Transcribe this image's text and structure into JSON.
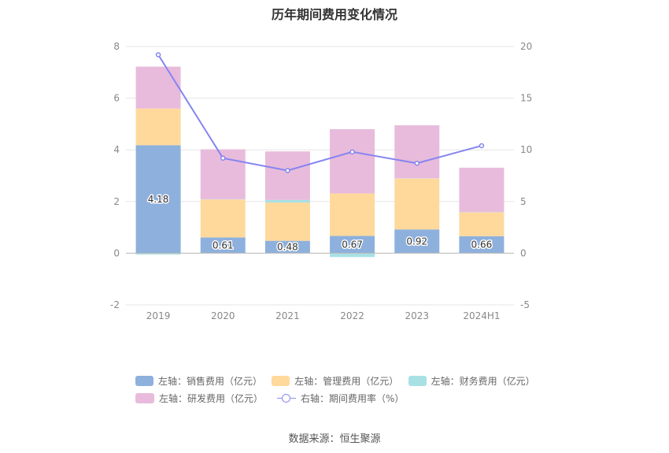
{
  "title": "历年期间费用变化情况",
  "source": "数据来源：恒生聚源",
  "colors": {
    "sales": "#8eb0dd",
    "admin": "#fed99b",
    "finance": "#a8e1e4",
    "rnd": "#e8bbdc",
    "rate": "#8585f0"
  },
  "chart_data": {
    "type": "bar",
    "stacked": true,
    "categories": [
      "2019",
      "2020",
      "2021",
      "2022",
      "2023",
      "2024H1"
    ],
    "y_left": {
      "min": -2,
      "max": 8,
      "ticks": [
        "-2",
        "0",
        "2",
        "4",
        "6",
        "8"
      ]
    },
    "y_right": {
      "min": -5,
      "max": 20,
      "ticks": [
        "-5",
        "0",
        "5",
        "10",
        "15",
        "20"
      ]
    },
    "series": [
      {
        "name": "左轴：销售费用（亿元）",
        "key": "sales",
        "axis": "left",
        "type": "bar",
        "values": [
          4.18,
          0.61,
          0.48,
          0.67,
          0.92,
          0.66
        ],
        "labels": [
          "4.18",
          "0.61",
          "0.48",
          "0.67",
          "0.92",
          "0.66"
        ]
      },
      {
        "name": "左轴：管理费用（亿元）",
        "key": "admin",
        "axis": "left",
        "type": "bar",
        "values": [
          1.42,
          1.47,
          1.48,
          1.64,
          1.97,
          0.92
        ]
      },
      {
        "name": "左轴：财务费用（亿元）",
        "key": "finance",
        "axis": "left",
        "type": "bar",
        "values": [
          -0.05,
          0.01,
          0.1,
          -0.15,
          0.01,
          0.01
        ]
      },
      {
        "name": "左轴：研发费用（亿元）",
        "key": "rnd",
        "axis": "left",
        "type": "bar",
        "values": [
          1.62,
          1.93,
          1.88,
          2.49,
          2.05,
          1.72
        ]
      },
      {
        "name": "右轴：期间费用率（%）",
        "key": "rate",
        "axis": "right",
        "type": "line",
        "values": [
          19.2,
          9.2,
          8.0,
          9.8,
          8.7,
          10.4
        ]
      }
    ],
    "legend_position": "bottom",
    "grid": true
  }
}
